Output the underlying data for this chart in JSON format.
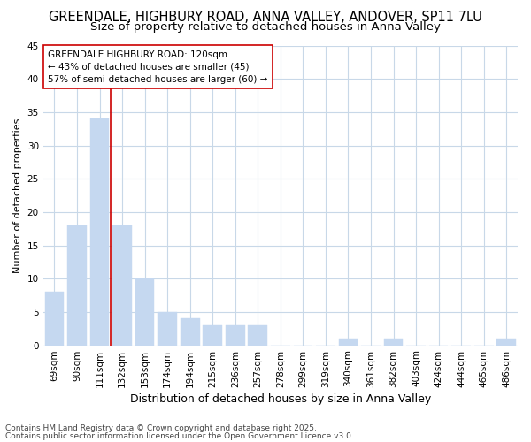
{
  "title1": "GREENDALE, HIGHBURY ROAD, ANNA VALLEY, ANDOVER, SP11 7LU",
  "title2": "Size of property relative to detached houses in Anna Valley",
  "xlabel": "Distribution of detached houses by size in Anna Valley",
  "ylabel": "Number of detached properties",
  "categories": [
    "69sqm",
    "90sqm",
    "111sqm",
    "132sqm",
    "153sqm",
    "174sqm",
    "194sqm",
    "215sqm",
    "236sqm",
    "257sqm",
    "278sqm",
    "299sqm",
    "319sqm",
    "340sqm",
    "361sqm",
    "382sqm",
    "403sqm",
    "424sqm",
    "444sqm",
    "465sqm",
    "486sqm"
  ],
  "values": [
    8,
    18,
    34,
    18,
    10,
    5,
    4,
    3,
    3,
    3,
    0,
    0,
    0,
    1,
    0,
    1,
    0,
    0,
    0,
    0,
    1
  ],
  "bar_color": "#c5d8f0",
  "bar_edge_color": "#c5d8f0",
  "vline_color": "#cc0000",
  "vline_x": 2.5,
  "annotation_text": "GREENDALE HIGHBURY ROAD: 120sqm\n← 43% of detached houses are smaller (45)\n57% of semi-detached houses are larger (60) →",
  "annotation_box_facecolor": "#ffffff",
  "annotation_box_edgecolor": "#cc0000",
  "ylim": [
    0,
    45
  ],
  "yticks": [
    0,
    5,
    10,
    15,
    20,
    25,
    30,
    35,
    40,
    45
  ],
  "plot_bg_color": "#ffffff",
  "fig_bg_color": "#ffffff",
  "grid_color": "#c8d8e8",
  "footer1": "Contains HM Land Registry data © Crown copyright and database right 2025.",
  "footer2": "Contains public sector information licensed under the Open Government Licence v3.0.",
  "title1_fontsize": 10.5,
  "title2_fontsize": 9.5,
  "xlabel_fontsize": 9,
  "ylabel_fontsize": 8,
  "tick_fontsize": 7.5,
  "annotation_fontsize": 7.5,
  "footer_fontsize": 6.5
}
